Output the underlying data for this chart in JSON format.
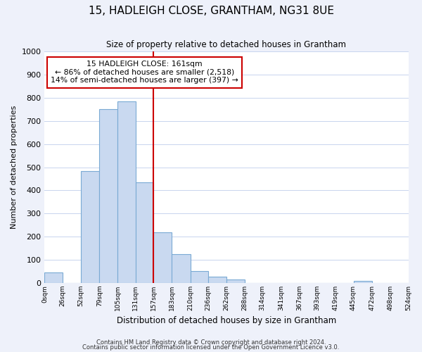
{
  "title": "15, HADLEIGH CLOSE, GRANTHAM, NG31 8UE",
  "subtitle": "Size of property relative to detached houses in Grantham",
  "xlabel": "Distribution of detached houses by size in Grantham",
  "ylabel": "Number of detached properties",
  "bar_edges": [
    0,
    26,
    52,
    79,
    105,
    131,
    157,
    183,
    210,
    236,
    262,
    288,
    314,
    341,
    367,
    393,
    419,
    445,
    472,
    498,
    524
  ],
  "bar_heights": [
    45,
    0,
    483,
    750,
    785,
    435,
    218,
    125,
    52,
    28,
    15,
    0,
    0,
    0,
    0,
    0,
    0,
    8,
    0,
    0
  ],
  "tick_labels": [
    "0sqm",
    "26sqm",
    "52sqm",
    "79sqm",
    "105sqm",
    "131sqm",
    "157sqm",
    "183sqm",
    "210sqm",
    "236sqm",
    "262sqm",
    "288sqm",
    "314sqm",
    "341sqm",
    "367sqm",
    "393sqm",
    "419sqm",
    "445sqm",
    "472sqm",
    "498sqm",
    "524sqm"
  ],
  "bar_color": "#c9d9f0",
  "bar_edge_color": "#7aaad4",
  "vline_x": 157,
  "vline_color": "#cc0000",
  "annotation_box_color": "#cc0000",
  "annotation_lines": [
    "15 HADLEIGH CLOSE: 161sqm",
    "← 86% of detached houses are smaller (2,518)",
    "14% of semi-detached houses are larger (397) →"
  ],
  "ylim": [
    0,
    1000
  ],
  "yticks": [
    0,
    100,
    200,
    300,
    400,
    500,
    600,
    700,
    800,
    900,
    1000
  ],
  "footer1": "Contains HM Land Registry data © Crown copyright and database right 2024.",
  "footer2": "Contains public sector information licensed under the Open Government Licence v3.0.",
  "bg_color": "#eef1fa",
  "plot_bg_color": "#ffffff"
}
